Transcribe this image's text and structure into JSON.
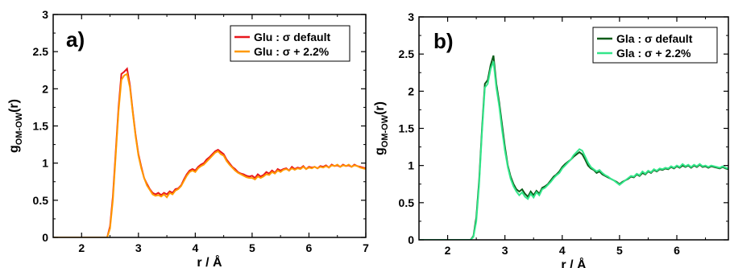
{
  "chart_data": [
    {
      "type": "line",
      "panel_label": "a)",
      "xlabel": {
        "main": "r",
        "sep": "  / ",
        "unit": "Å"
      },
      "ylabel": {
        "main": "g",
        "sub": "OM-OW",
        "suffix": "(r)"
      },
      "xlim": [
        1.5,
        7
      ],
      "ylim": [
        0,
        3
      ],
      "xticks": [
        "2",
        "3",
        "4",
        "5",
        "6",
        "7"
      ],
      "yticks": [
        "0",
        "0.5",
        "1",
        "1.5",
        "2",
        "2.5",
        "3"
      ],
      "legend_position": "top-right",
      "series": [
        {
          "name": "Glu : σ default",
          "color": "#e8161c",
          "x": [
            1.5,
            2.45,
            2.5,
            2.55,
            2.6,
            2.65,
            2.7,
            2.75,
            2.8,
            2.85,
            2.9,
            2.95,
            3.0,
            3.05,
            3.1,
            3.15,
            3.2,
            3.25,
            3.3,
            3.35,
            3.4,
            3.45,
            3.5,
            3.55,
            3.6,
            3.65,
            3.7,
            3.75,
            3.8,
            3.85,
            3.9,
            3.95,
            4.0,
            4.05,
            4.1,
            4.15,
            4.2,
            4.25,
            4.3,
            4.35,
            4.4,
            4.45,
            4.5,
            4.55,
            4.6,
            4.65,
            4.7,
            4.75,
            4.8,
            4.85,
            4.9,
            4.95,
            5.0,
            5.05,
            5.1,
            5.15,
            5.2,
            5.25,
            5.3,
            5.35,
            5.4,
            5.45,
            5.5,
            5.55,
            5.6,
            5.65,
            5.7,
            5.75,
            5.8,
            5.85,
            5.9,
            5.95,
            6.0,
            6.05,
            6.1,
            6.15,
            6.2,
            6.25,
            6.3,
            6.35,
            6.4,
            6.45,
            6.5,
            6.55,
            6.6,
            6.65,
            6.7,
            6.75,
            6.8,
            6.85,
            6.9,
            6.95,
            7.0
          ],
          "y": [
            0,
            0,
            0.15,
            0.55,
            1.15,
            1.75,
            2.2,
            2.23,
            2.27,
            2.05,
            1.7,
            1.38,
            1.12,
            0.95,
            0.8,
            0.72,
            0.65,
            0.6,
            0.58,
            0.6,
            0.57,
            0.6,
            0.58,
            0.62,
            0.6,
            0.65,
            0.66,
            0.7,
            0.78,
            0.85,
            0.9,
            0.92,
            0.9,
            0.95,
            0.98,
            1.0,
            1.05,
            1.08,
            1.12,
            1.16,
            1.18,
            1.15,
            1.12,
            1.05,
            1.0,
            0.95,
            0.92,
            0.88,
            0.86,
            0.85,
            0.83,
            0.82,
            0.83,
            0.8,
            0.85,
            0.82,
            0.84,
            0.88,
            0.86,
            0.9,
            0.87,
            0.92,
            0.9,
            0.92,
            0.93,
            0.9,
            0.95,
            0.92,
            0.94,
            0.93,
            0.96,
            0.92,
            0.95,
            0.94,
            0.95,
            0.93,
            0.96,
            0.95,
            0.97,
            0.94,
            0.98,
            0.96,
            0.97,
            0.95,
            0.98,
            0.96,
            0.97,
            0.95,
            0.98,
            0.96,
            0.95,
            0.94,
            0.93
          ]
        },
        {
          "name": "Glu : σ + 2.2%",
          "color": "#ff9900",
          "x": [
            1.5,
            2.45,
            2.5,
            2.55,
            2.6,
            2.65,
            2.7,
            2.75,
            2.8,
            2.85,
            2.9,
            2.95,
            3.0,
            3.05,
            3.1,
            3.15,
            3.2,
            3.25,
            3.3,
            3.35,
            3.4,
            3.45,
            3.5,
            3.55,
            3.6,
            3.65,
            3.7,
            3.75,
            3.8,
            3.85,
            3.9,
            3.95,
            4.0,
            4.05,
            4.1,
            4.15,
            4.2,
            4.25,
            4.3,
            4.35,
            4.4,
            4.45,
            4.5,
            4.55,
            4.6,
            4.65,
            4.7,
            4.75,
            4.8,
            4.85,
            4.9,
            4.95,
            5.0,
            5.05,
            5.1,
            5.15,
            5.2,
            5.25,
            5.3,
            5.35,
            5.4,
            5.45,
            5.5,
            5.55,
            5.6,
            5.65,
            5.7,
            5.75,
            5.8,
            5.85,
            5.9,
            5.95,
            6.0,
            6.05,
            6.1,
            6.15,
            6.2,
            6.25,
            6.3,
            6.35,
            6.4,
            6.45,
            6.5,
            6.55,
            6.6,
            6.65,
            6.7,
            6.75,
            6.8,
            6.85,
            6.9,
            6.95,
            7.0
          ],
          "y": [
            0,
            0,
            0.12,
            0.5,
            1.1,
            1.7,
            2.12,
            2.18,
            2.2,
            2.02,
            1.68,
            1.36,
            1.1,
            0.93,
            0.8,
            0.7,
            0.64,
            0.58,
            0.56,
            0.57,
            0.55,
            0.58,
            0.54,
            0.6,
            0.58,
            0.63,
            0.65,
            0.69,
            0.76,
            0.83,
            0.88,
            0.9,
            0.88,
            0.93,
            0.96,
            0.98,
            1.02,
            1.06,
            1.1,
            1.14,
            1.16,
            1.12,
            1.1,
            1.03,
            0.98,
            0.94,
            0.9,
            0.87,
            0.85,
            0.83,
            0.81,
            0.8,
            0.8,
            0.78,
            0.82,
            0.8,
            0.82,
            0.85,
            0.84,
            0.88,
            0.86,
            0.9,
            0.88,
            0.91,
            0.92,
            0.9,
            0.93,
            0.91,
            0.93,
            0.92,
            0.95,
            0.92,
            0.94,
            0.93,
            0.95,
            0.93,
            0.95,
            0.94,
            0.96,
            0.94,
            0.97,
            0.96,
            0.98,
            0.95,
            0.97,
            0.96,
            0.98,
            0.95,
            0.97,
            0.96,
            0.94,
            0.93,
            0.92
          ]
        }
      ]
    },
    {
      "type": "line",
      "panel_label": "b)",
      "xlabel": {
        "main": "r",
        "sep": "  / ",
        "unit": "Å"
      },
      "ylabel": {
        "main": "g",
        "sub": "OM-OW",
        "suffix": "(r)"
      },
      "xlim": [
        1.5,
        6.9
      ],
      "ylim": [
        0,
        3
      ],
      "xticks": [
        "2",
        "3",
        "4",
        "5",
        "6"
      ],
      "yticks": [
        "0",
        "0.5",
        "1",
        "1.5",
        "2",
        "2.5",
        "3"
      ],
      "legend_position": "top-right",
      "series": [
        {
          "name": "Gla : σ default",
          "color": "#0a5c18",
          "x": [
            1.5,
            2.4,
            2.45,
            2.5,
            2.55,
            2.6,
            2.65,
            2.7,
            2.75,
            2.8,
            2.85,
            2.9,
            2.95,
            3.0,
            3.05,
            3.1,
            3.15,
            3.2,
            3.25,
            3.3,
            3.35,
            3.4,
            3.45,
            3.5,
            3.55,
            3.6,
            3.65,
            3.7,
            3.75,
            3.8,
            3.85,
            3.9,
            3.95,
            4.0,
            4.05,
            4.1,
            4.15,
            4.2,
            4.25,
            4.3,
            4.35,
            4.4,
            4.45,
            4.5,
            4.55,
            4.6,
            4.65,
            4.7,
            4.75,
            4.8,
            4.85,
            4.9,
            4.95,
            5.0,
            5.05,
            5.1,
            5.15,
            5.2,
            5.25,
            5.3,
            5.35,
            5.4,
            5.45,
            5.5,
            5.55,
            5.6,
            5.65,
            5.7,
            5.75,
            5.8,
            5.85,
            5.9,
            5.95,
            6.0,
            6.05,
            6.1,
            6.15,
            6.2,
            6.25,
            6.3,
            6.35,
            6.4,
            6.45,
            6.5,
            6.55,
            6.6,
            6.65,
            6.7,
            6.75,
            6.8,
            6.85,
            6.9
          ],
          "y": [
            0,
            0,
            0.05,
            0.3,
            0.8,
            1.5,
            2.1,
            2.15,
            2.35,
            2.48,
            2.1,
            1.85,
            1.55,
            1.25,
            1.0,
            0.85,
            0.75,
            0.68,
            0.65,
            0.68,
            0.62,
            0.58,
            0.65,
            0.6,
            0.66,
            0.62,
            0.7,
            0.72,
            0.75,
            0.8,
            0.85,
            0.88,
            0.92,
            0.98,
            1.02,
            1.05,
            1.08,
            1.12,
            1.15,
            1.18,
            1.15,
            1.08,
            1.0,
            0.96,
            0.94,
            0.9,
            0.92,
            0.88,
            0.86,
            0.84,
            0.82,
            0.8,
            0.78,
            0.75,
            0.78,
            0.8,
            0.82,
            0.85,
            0.84,
            0.88,
            0.86,
            0.9,
            0.88,
            0.92,
            0.9,
            0.94,
            0.92,
            0.95,
            0.94,
            0.96,
            0.95,
            0.98,
            0.96,
            0.99,
            0.97,
            1.0,
            0.98,
            1.0,
            0.97,
            1.0,
            0.98,
            1.01,
            0.98,
            0.99,
            0.97,
            0.99,
            0.98,
            0.97,
            0.96,
            0.98,
            0.96,
            0.95
          ]
        },
        {
          "name": "Gla : σ  + 2.2%",
          "color": "#33e68a",
          "x": [
            1.5,
            2.4,
            2.45,
            2.5,
            2.55,
            2.6,
            2.65,
            2.7,
            2.75,
            2.8,
            2.85,
            2.9,
            2.95,
            3.0,
            3.05,
            3.1,
            3.15,
            3.2,
            3.25,
            3.3,
            3.35,
            3.4,
            3.45,
            3.5,
            3.55,
            3.6,
            3.65,
            3.7,
            3.75,
            3.8,
            3.85,
            3.9,
            3.95,
            4.0,
            4.05,
            4.1,
            4.15,
            4.2,
            4.25,
            4.3,
            4.35,
            4.4,
            4.45,
            4.5,
            4.55,
            4.6,
            4.65,
            4.7,
            4.75,
            4.8,
            4.85,
            4.9,
            4.95,
            5.0,
            5.05,
            5.1,
            5.15,
            5.2,
            5.25,
            5.3,
            5.35,
            5.4,
            5.45,
            5.5,
            5.55,
            5.6,
            5.65,
            5.7,
            5.75,
            5.8,
            5.85,
            5.9,
            5.95,
            6.0,
            6.05,
            6.1,
            6.15,
            6.2,
            6.25,
            6.3,
            6.35,
            6.4,
            6.45,
            6.5,
            6.55,
            6.6,
            6.65,
            6.7,
            6.75,
            6.8,
            6.85,
            6.9
          ],
          "y": [
            0,
            0,
            0.04,
            0.25,
            0.75,
            1.45,
            2.05,
            2.1,
            2.3,
            2.4,
            2.05,
            1.8,
            1.48,
            1.2,
            0.98,
            0.82,
            0.72,
            0.65,
            0.6,
            0.64,
            0.58,
            0.55,
            0.62,
            0.57,
            0.64,
            0.6,
            0.68,
            0.7,
            0.74,
            0.78,
            0.83,
            0.87,
            0.9,
            0.96,
            1.0,
            1.04,
            1.08,
            1.14,
            1.18,
            1.22,
            1.2,
            1.12,
            1.04,
            0.98,
            0.95,
            0.92,
            0.94,
            0.9,
            0.87,
            0.85,
            0.82,
            0.8,
            0.77,
            0.74,
            0.77,
            0.8,
            0.83,
            0.86,
            0.85,
            0.89,
            0.87,
            0.92,
            0.89,
            0.93,
            0.91,
            0.95,
            0.93,
            0.96,
            0.95,
            0.97,
            0.96,
            0.99,
            0.97,
            1.0,
            0.98,
            1.02,
            0.99,
            1.01,
            0.98,
            1.01,
            0.99,
            1.02,
            0.99,
            1.0,
            0.98,
            1.0,
            0.99,
            0.98,
            0.97,
            0.99,
            0.97,
            0.96
          ]
        }
      ]
    }
  ]
}
